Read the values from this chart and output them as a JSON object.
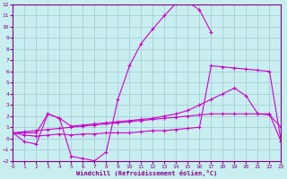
{
  "xlabel": "Windchill (Refroidissement éolien,°C)",
  "bg_color": "#c8eef0",
  "grid_color": "#a0c8d0",
  "line_color": "#cc00cc",
  "xlim": [
    0,
    23
  ],
  "ylim": [
    -2,
    12
  ],
  "xticks": [
    0,
    1,
    2,
    3,
    4,
    5,
    6,
    7,
    8,
    9,
    10,
    11,
    12,
    13,
    14,
    15,
    16,
    17,
    18,
    19,
    20,
    21,
    22,
    23
  ],
  "yticks": [
    -2,
    -1,
    0,
    1,
    2,
    3,
    4,
    5,
    6,
    7,
    8,
    9,
    10,
    11,
    12
  ],
  "curves": [
    {
      "x": [
        0,
        1,
        2,
        3,
        4,
        5,
        6,
        7,
        8,
        9,
        10,
        11,
        12,
        13,
        14,
        15,
        16,
        17
      ],
      "y": [
        0.5,
        -0.3,
        -0.5,
        2.2,
        1.8,
        -1.6,
        -1.8,
        -2.0,
        -1.2,
        3.5,
        6.5,
        8.5,
        9.8,
        11.0,
        12.1,
        12.2,
        11.5,
        9.5
      ]
    },
    {
      "x": [
        0,
        1,
        2,
        3,
        4,
        5,
        6,
        7,
        8,
        9,
        10,
        11,
        12,
        13,
        14,
        15,
        16,
        17,
        18,
        19,
        20,
        21,
        22,
        23
      ],
      "y": [
        0.5,
        0.6,
        0.7,
        0.8,
        0.9,
        1.0,
        1.1,
        1.2,
        1.3,
        1.4,
        1.5,
        1.6,
        1.7,
        1.8,
        1.9,
        2.0,
        2.1,
        2.2,
        2.2,
        2.2,
        2.2,
        2.2,
        2.1,
        1.0
      ]
    },
    {
      "x": [
        0,
        1,
        2,
        3,
        4,
        5,
        6,
        7,
        8,
        9,
        10,
        11,
        12,
        13,
        14,
        15,
        16,
        17,
        18,
        19,
        20,
        21,
        22,
        23
      ],
      "y": [
        0.5,
        0.5,
        0.5,
        2.2,
        1.8,
        1.1,
        1.2,
        1.3,
        1.4,
        1.5,
        1.6,
        1.7,
        1.8,
        2.0,
        2.2,
        2.5,
        3.0,
        3.5,
        4.0,
        4.5,
        3.8,
        2.2,
        2.2,
        -0.3
      ]
    },
    {
      "x": [
        0,
        1,
        2,
        3,
        4,
        5,
        6,
        7,
        8,
        9,
        10,
        11,
        12,
        13,
        14,
        15,
        16,
        17,
        18,
        19,
        20,
        21,
        22,
        23
      ],
      "y": [
        0.5,
        0.3,
        0.2,
        0.3,
        0.4,
        0.3,
        0.4,
        0.4,
        0.5,
        0.5,
        0.5,
        0.6,
        0.7,
        0.7,
        0.8,
        0.9,
        1.0,
        6.5,
        6.4,
        6.3,
        6.2,
        6.1,
        6.0,
        -0.3
      ]
    }
  ]
}
